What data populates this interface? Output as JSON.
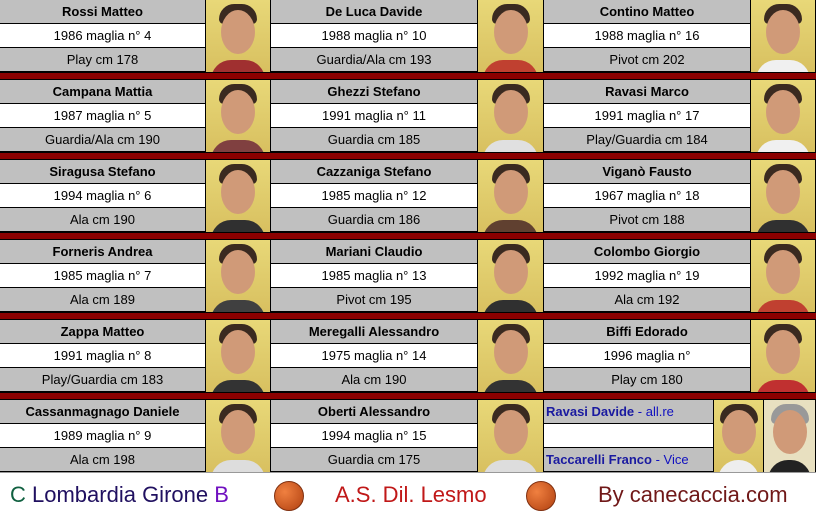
{
  "players": [
    {
      "name": "Rossi Matteo",
      "info": "1986 maglia n° 4",
      "role": "Play cm 178"
    },
    {
      "name": "De Luca Davide",
      "info": "1988 maglia n° 10",
      "role": "Guardia/Ala cm 193"
    },
    {
      "name": "Contino Matteo",
      "info": "1988 maglia n° 16",
      "role": "Pivot cm 202"
    },
    {
      "name": "Campana Mattia",
      "info": "1987 maglia n° 5",
      "role": "Guardia/Ala cm 190"
    },
    {
      "name": "Ghezzi Stefano",
      "info": "1991 maglia n° 11",
      "role": "Guardia cm 185"
    },
    {
      "name": "Ravasi Marco",
      "info": "1991 maglia n° 17",
      "role": "Play/Guardia cm 184"
    },
    {
      "name": "Siragusa Stefano",
      "info": "1994 maglia n° 6",
      "role": "Ala cm 190"
    },
    {
      "name": "Cazzaniga Stefano",
      "info": "1985 maglia n° 12",
      "role": "Guardia cm 186"
    },
    {
      "name": "Viganò Fausto",
      "info": "1967 maglia n° 18",
      "role": "Pivot cm 188"
    },
    {
      "name": "Forneris Andrea",
      "info": "1985 maglia n° 7",
      "role": "Ala cm 189"
    },
    {
      "name": "Mariani Claudio",
      "info": "1985 maglia n° 13",
      "role": "Pivot cm 195"
    },
    {
      "name": "Colombo Giorgio",
      "info": "1992 maglia n° 19",
      "role": "Ala cm 192"
    },
    {
      "name": "Zappa Matteo",
      "info": "1991 maglia n° 8",
      "role": "Play/Guardia cm 183"
    },
    {
      "name": "Meregalli Alessandro",
      "info": "1975 maglia n° 14",
      "role": "Ala cm 190"
    },
    {
      "name": "Biffi Edorado",
      "info": "1996 maglia n°",
      "role": "Play cm 180"
    },
    {
      "name": "Cassanmagnago Daniele",
      "info": "1989 maglia n° 9",
      "role": "Ala cm 198"
    },
    {
      "name": "Oberti Alessandro",
      "info": "1994 maglia n° 15",
      "role": "Guardia cm 175"
    }
  ],
  "staff": [
    {
      "name": "Ravasi Davide",
      "role": " - all.re"
    },
    {
      "name": "Taccarelli Franco",
      "role": " - Vice"
    }
  ],
  "footer": {
    "league_c": "C",
    "league_mid": " Lombardia Girone ",
    "league_b": "B",
    "club": "A.S. Dil. Lesmo",
    "site": "By canecaccia.com"
  },
  "colors": {
    "separator": "#8b0000",
    "cell_gray": "#c0c0c0",
    "staff_text": "#1010c0",
    "club": "#c01818",
    "site": "#701818"
  }
}
